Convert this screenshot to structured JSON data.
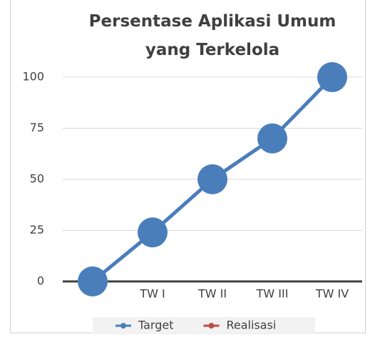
{
  "chart_data": {
    "type": "line",
    "title": "Persentase Aplikasi Umum yang Terkelola",
    "categories": [
      null,
      "TW I",
      "TW II",
      "TW III",
      "TW IV"
    ],
    "series": [
      {
        "name": "Target",
        "color": "#4a7ebb",
        "values": [
          0,
          24,
          50,
          70,
          100
        ]
      },
      {
        "name": "Realisasi",
        "color": "#be4b48",
        "values": [
          null,
          null,
          null,
          null,
          null
        ]
      }
    ],
    "ylim": [
      0,
      100
    ],
    "yticks": [
      0,
      25,
      50,
      75,
      100
    ],
    "grid": true,
    "legend": "bottom"
  }
}
